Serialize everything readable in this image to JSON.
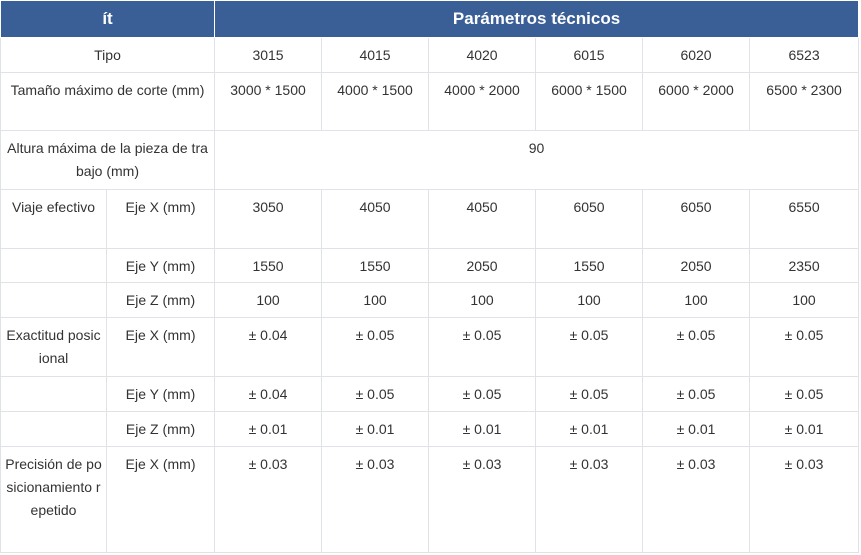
{
  "header": {
    "item_label": "ít",
    "params_label": "Parámetros técnicos"
  },
  "type_row": {
    "label": "Tipo",
    "values": [
      "3015",
      "4015",
      "4020",
      "6015",
      "6020",
      "6523"
    ]
  },
  "cut_size_row": {
    "label": "Tamaño máximo de corte (mm)",
    "values": [
      "3000 * 1500",
      "4000 * 1500",
      "4000 * 2000",
      "6000 * 1500",
      "6000 * 2000",
      "6500 * 2300"
    ]
  },
  "height_row": {
    "label": "Altura máxima de la pieza de trabajo (mm)",
    "value": "90"
  },
  "travel": {
    "label": "Viaje efectivo",
    "rows": [
      {
        "axis": "Eje X (mm)",
        "values": [
          "3050",
          "4050",
          "4050",
          "6050",
          "6050",
          "6550"
        ]
      },
      {
        "axis": "Eje Y (mm)",
        "values": [
          "1550",
          "1550",
          "2050",
          "1550",
          "2050",
          "2350"
        ]
      },
      {
        "axis": "Eje Z (mm)",
        "values": [
          "100",
          "100",
          "100",
          "100",
          "100",
          "100"
        ]
      }
    ]
  },
  "accuracy": {
    "label": "Exactitud posicional",
    "rows": [
      {
        "axis": "Eje X (mm)",
        "values": [
          "± 0.04",
          "± 0.05",
          "± 0.05",
          "± 0.05",
          "± 0.05",
          "± 0.05"
        ]
      },
      {
        "axis": "Eje Y (mm)",
        "values": [
          "± 0.04",
          "± 0.05",
          "± 0.05",
          "± 0.05",
          "± 0.05",
          "± 0.05"
        ]
      },
      {
        "axis": "Eje Z (mm)",
        "values": [
          "± 0.01",
          "± 0.01",
          "± 0.01",
          "± 0.01",
          "± 0.01",
          "± 0.01"
        ]
      }
    ]
  },
  "repeat": {
    "label": "Precisión de posicionamiento repetido",
    "rows": [
      {
        "axis": "Eje X (mm)",
        "values": [
          "± 0.03",
          "± 0.03",
          "± 0.03",
          "± 0.03",
          "± 0.03",
          "± 0.03"
        ]
      }
    ]
  }
}
